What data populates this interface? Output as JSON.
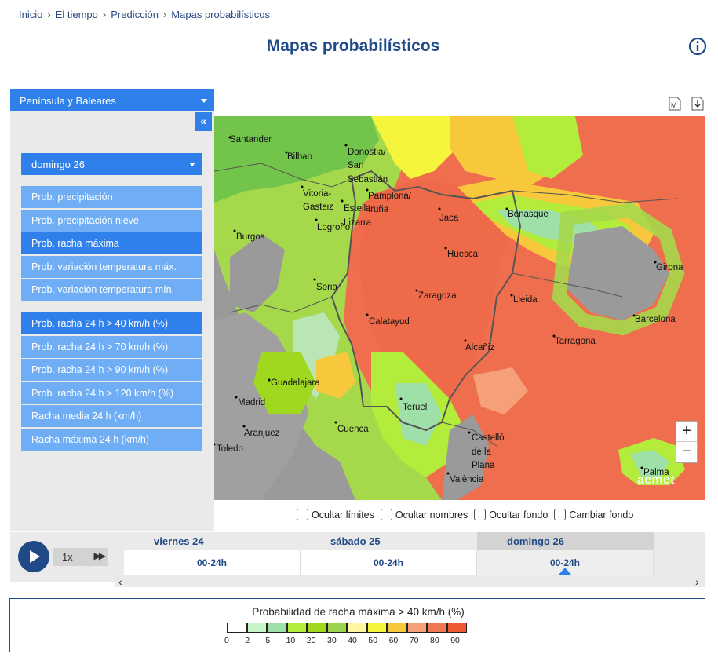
{
  "breadcrumb": {
    "items": [
      "Inicio",
      "El tiempo",
      "Predicción",
      "Mapas probabilísticos"
    ],
    "sep": "›"
  },
  "page": {
    "title": "Mapas probabilísticos"
  },
  "region": {
    "selected": "Península y Baleares"
  },
  "sidebar": {
    "collapse_label": "«",
    "day_selected": "domingo 26",
    "group1": [
      "Prob. precipitación",
      "Prob. precipitación nieve",
      "Prob. racha máxima",
      "Prob. variación temperatura máx.",
      "Prob. variación temperatura mín."
    ],
    "group1_active": 2,
    "group2": [
      "Prob. racha 24 h > 40 km/h (%)",
      "Prob. racha 24 h > 70 km/h (%)",
      "Prob. racha 24 h > 90 km/h (%)",
      "Prob. racha 24 h > 120 km/h (%)",
      "Racha media 24 h (km/h)",
      "Racha máxima 24 h (km/h)"
    ],
    "group2_active": 0
  },
  "toolbar": {
    "m_icon": "M",
    "download_icon": "download-icon"
  },
  "map": {
    "cities": [
      "Santander",
      "Bilbao",
      "Donostia/",
      "San",
      "Sebastián",
      "Vitoria-",
      "Gasteiz",
      "Pamplona/",
      "Iruña",
      "Estella",
      "Lizarra",
      "Logroño",
      "Burgos",
      "Jaca",
      "Benasque",
      "Huesca",
      "Soria",
      "Zaragoza",
      "Lleida",
      "Girona",
      "Barcelona",
      "Calatayud",
      "Alcañiz",
      "Tarragona",
      "Guadalajara",
      "Madrid",
      "Aranjuez",
      "Cuenca",
      "Teruel",
      "Castelló",
      "de la",
      "Plana",
      "València",
      "Toledo",
      "Palma"
    ],
    "zoom_in": "+",
    "zoom_out": "−",
    "logo": "aemet"
  },
  "options": [
    "Ocultar límites",
    "Ocultar nombres",
    "Ocultar fondo",
    "Cambiar fondo"
  ],
  "player": {
    "speed": "1x",
    "ff": "▶▶"
  },
  "timeline": [
    {
      "day": "viernes 24",
      "range": "00-24h"
    },
    {
      "day": "sábado 25",
      "range": "00-24h"
    },
    {
      "day": "domingo 26",
      "range": "00-24h"
    }
  ],
  "timeline_selected": 2,
  "legend": {
    "title": "Probabilidad de racha máxima > 40 km/h (%)",
    "colors": [
      "#ffffff",
      "#c8f5c8",
      "#9fe0a8",
      "#b4ec3c",
      "#9fd81e",
      "#9cd44e",
      "#fff8a0",
      "#f5f53c",
      "#f7c83c",
      "#f5a078",
      "#f07850",
      "#ee5a32"
    ],
    "labels": [
      "0",
      "2",
      "5",
      "10",
      "20",
      "30",
      "40",
      "50",
      "60",
      "70",
      "80",
      "90"
    ]
  }
}
